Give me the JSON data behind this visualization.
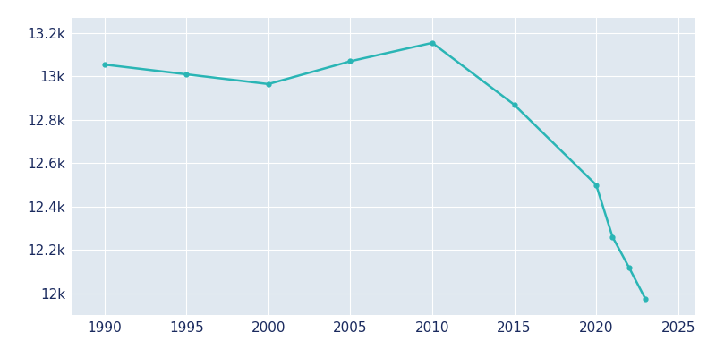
{
  "years": [
    1990,
    1995,
    2000,
    2005,
    2010,
    2015,
    2020,
    2021,
    2022,
    2023
  ],
  "population": [
    13055,
    13010,
    12965,
    13070,
    13155,
    12870,
    12500,
    12260,
    12120,
    11975
  ],
  "line_color": "#2AB5B5",
  "marker_color": "#2AB5B5",
  "fig_bg_color": "#FFFFFF",
  "plot_bg_color": "#E0E8F0",
  "text_color": "#1a2a5e",
  "xlim": [
    1988,
    2026
  ],
  "ylim": [
    11900,
    13270
  ],
  "yticks": [
    12000,
    12200,
    12400,
    12600,
    12800,
    13000,
    13200
  ],
  "ytick_labels": [
    "12k",
    "12.2k",
    "12.4k",
    "12.6k",
    "12.8k",
    "13k",
    "13.2k"
  ],
  "xticks": [
    1990,
    1995,
    2000,
    2005,
    2010,
    2015,
    2020,
    2025
  ],
  "grid_color": "#FFFFFF",
  "linewidth": 1.8,
  "markersize": 3.5,
  "tick_fontsize": 11
}
